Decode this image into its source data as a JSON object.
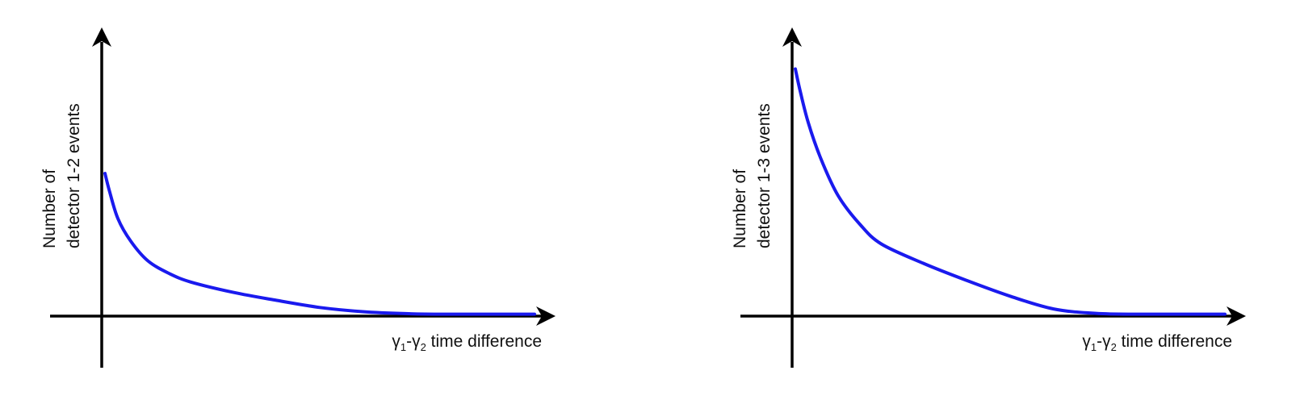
{
  "chart_data": [
    {
      "type": "line",
      "ylabel_lines": [
        "Number of",
        "detector 1-2 events"
      ],
      "xlabel": {
        "prefix": "γ",
        "sub1": "1",
        "mid": "-γ",
        "sub2": "2",
        "rest": " time difference"
      },
      "xlim": [
        0,
        1
      ],
      "ylim": [
        0,
        1
      ],
      "grid": false,
      "axis_ticks": false,
      "colors": {
        "curve": "#1a1aee",
        "axes": "#000000"
      },
      "series": [
        {
          "x": [
            0,
            0.01,
            0.03,
            0.06,
            0.1,
            0.15,
            0.2,
            0.3,
            0.4,
            0.5,
            0.6,
            0.7,
            0.8,
            1.0
          ],
          "y": [
            0.5,
            0.44,
            0.34,
            0.26,
            0.19,
            0.145,
            0.115,
            0.078,
            0.05,
            0.025,
            0.01,
            0.003,
            0.001,
            0.001
          ]
        }
      ]
    },
    {
      "type": "line",
      "ylabel_lines": [
        "Number of",
        "detector 1-3 events"
      ],
      "xlabel": {
        "prefix": "γ",
        "sub1": "1",
        "mid": "-γ",
        "sub2": "2",
        "rest": " time difference"
      },
      "xlim": [
        0,
        1
      ],
      "ylim": [
        0,
        1
      ],
      "grid": false,
      "axis_ticks": false,
      "colors": {
        "curve": "#1a1aee",
        "axes": "#000000"
      },
      "series": [
        {
          "x": [
            0,
            0.01,
            0.03,
            0.06,
            0.1,
            0.15,
            0.2,
            0.3,
            0.4,
            0.5,
            0.6,
            0.7,
            0.8,
            1.0
          ],
          "y": [
            0.87,
            0.8,
            0.68,
            0.55,
            0.42,
            0.32,
            0.25,
            0.18,
            0.12,
            0.065,
            0.02,
            0.004,
            0.001,
            0.001
          ]
        }
      ]
    }
  ]
}
